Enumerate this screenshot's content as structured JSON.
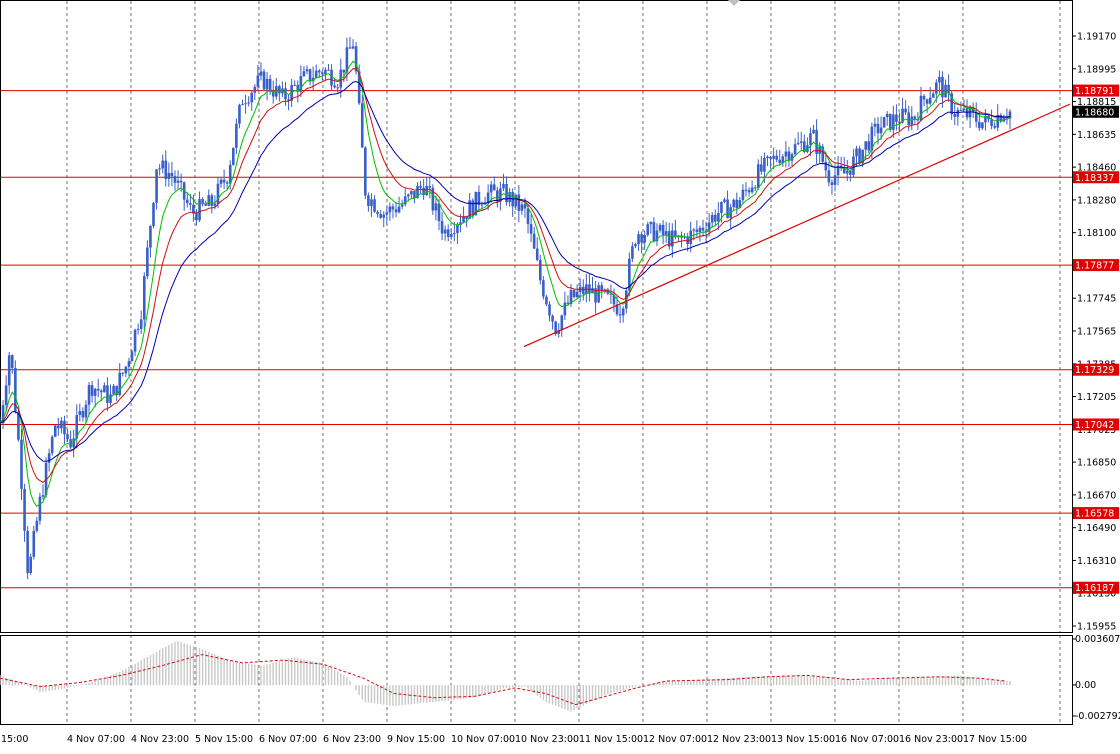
{
  "chart_data": [
    {
      "type": "candlestick",
      "symbol": "EURUSD",
      "timeframe": "H1",
      "colors": {
        "background": "#ffffff",
        "candles": "#3a5fc8",
        "grid": "#000000",
        "ma_fast": "#00c000",
        "ma_mid": "#d01010",
        "ma_slow": "#0000b0",
        "levels": "#e00000",
        "trendline": "#e00000",
        "current_price_box": "#000000"
      },
      "ylim": [
        1.15955,
        1.19255
      ],
      "y_ticks": [
        "1.19170",
        "1.18995",
        "1.18815",
        "1.18635",
        "1.18460",
        "1.18280",
        "1.18100",
        "1.17920",
        "1.17745",
        "1.17565",
        "1.17385",
        "1.17205",
        "1.17025",
        "1.16850",
        "1.16670",
        "1.16490",
        "1.16310",
        "1.16130",
        "1.15955"
      ],
      "x_ticks": [
        "15:00",
        "4 Nov 07:00",
        "4 Nov 23:00",
        "5 Nov 15:00",
        "6 Nov 07:00",
        "6 Nov 23:00",
        "9 Nov 15:00",
        "10 Nov 07:00",
        "10 Nov 23:00",
        "11 Nov 15:00",
        "12 Nov 07:00",
        "12 Nov 23:00",
        "13 Nov 15:00",
        "16 Nov 07:00",
        "16 Nov 23:00",
        "17 Nov 15:00"
      ],
      "levels": [
        {
          "label": "1.18791",
          "value": 1.18791
        },
        {
          "label": "1.18337",
          "value": 1.18337
        },
        {
          "label": "1.17877",
          "value": 1.17877
        },
        {
          "label": "1.17329",
          "value": 1.17329
        },
        {
          "label": "1.17042",
          "value": 1.17042
        },
        {
          "label": "1.16578",
          "value": 1.16578
        },
        {
          "label": "1.16187",
          "value": 1.16187
        }
      ],
      "current_price": {
        "label": "1.18680",
        "value": 1.1868
      },
      "trendline": {
        "from": {
          "x": 0.0,
          "y": 1.1745
        },
        "to": {
          "x": 1.0,
          "y": 1.1872
        }
      },
      "price_path": [
        [
          0.0,
          1.1705
        ],
        [
          0.01,
          1.1745
        ],
        [
          0.02,
          1.1685
        ],
        [
          0.028,
          1.1625
        ],
        [
          0.04,
          1.1665
        ],
        [
          0.055,
          1.1705
        ],
        [
          0.07,
          1.1695
        ],
        [
          0.09,
          1.1725
        ],
        [
          0.11,
          1.1718
        ],
        [
          0.125,
          1.1735
        ],
        [
          0.14,
          1.1765
        ],
        [
          0.155,
          1.184
        ],
        [
          0.17,
          1.1835
        ],
        [
          0.19,
          1.1815
        ],
        [
          0.21,
          1.182
        ],
        [
          0.225,
          1.1835
        ],
        [
          0.24,
          1.1875
        ],
        [
          0.26,
          1.1885
        ],
        [
          0.28,
          1.1875
        ],
        [
          0.3,
          1.1885
        ],
        [
          0.32,
          1.189
        ],
        [
          0.335,
          1.1885
        ],
        [
          0.35,
          1.1905
        ],
        [
          0.362,
          1.1825
        ],
        [
          0.38,
          1.1815
        ],
        [
          0.4,
          1.182
        ],
        [
          0.42,
          1.183
        ],
        [
          0.44,
          1.1805
        ],
        [
          0.46,
          1.1815
        ],
        [
          0.48,
          1.1825
        ],
        [
          0.5,
          1.1825
        ],
        [
          0.52,
          1.1815
        ],
        [
          0.535,
          1.178
        ],
        [
          0.55,
          1.1755
        ],
        [
          0.565,
          1.177
        ],
        [
          0.58,
          1.1775
        ],
        [
          0.6,
          1.177
        ],
        [
          0.615,
          1.1765
        ],
        [
          0.63,
          1.1805
        ],
        [
          0.65,
          1.1805
        ],
        [
          0.67,
          1.18
        ],
        [
          0.69,
          1.1805
        ],
        [
          0.71,
          1.1815
        ],
        [
          0.73,
          1.182
        ],
        [
          0.75,
          1.1835
        ],
        [
          0.77,
          1.1845
        ],
        [
          0.79,
          1.185
        ],
        [
          0.805,
          1.1855
        ],
        [
          0.82,
          1.1835
        ],
        [
          0.835,
          1.1835
        ],
        [
          0.85,
          1.1845
        ],
        [
          0.87,
          1.186
        ],
        [
          0.89,
          1.1865
        ],
        [
          0.905,
          1.1865
        ],
        [
          0.915,
          1.1875
        ],
        [
          0.93,
          1.1883
        ],
        [
          0.945,
          1.1868
        ],
        [
          0.96,
          1.1866
        ],
        [
          0.975,
          1.1862
        ],
        [
          0.985,
          1.1865
        ],
        [
          0.993,
          1.1868
        ]
      ]
    },
    {
      "type": "histogram",
      "name": "MACD",
      "ylim": [
        -0.002792,
        0.003607
      ],
      "y_ticks": [
        "0.003607",
        "0.00",
        "-0.002792"
      ],
      "hist_path": [
        [
          0.0,
          0.0007
        ],
        [
          0.02,
          0.0002
        ],
        [
          0.04,
          -0.0005
        ],
        [
          0.06,
          -0.0003
        ],
        [
          0.09,
          0.0002
        ],
        [
          0.12,
          0.001
        ],
        [
          0.15,
          0.0022
        ],
        [
          0.175,
          0.0032
        ],
        [
          0.2,
          0.0026
        ],
        [
          0.23,
          0.0017
        ],
        [
          0.26,
          0.0014
        ],
        [
          0.29,
          0.002
        ],
        [
          0.32,
          0.0016
        ],
        [
          0.345,
          0.0005
        ],
        [
          0.36,
          -0.0012
        ],
        [
          0.39,
          -0.0015
        ],
        [
          0.43,
          -0.0012
        ],
        [
          0.47,
          -0.0009
        ],
        [
          0.5,
          -0.0002
        ],
        [
          0.52,
          -0.0001
        ],
        [
          0.54,
          -0.0012
        ],
        [
          0.565,
          -0.0019
        ],
        [
          0.6,
          -0.0007
        ],
        [
          0.63,
          -0.0001
        ],
        [
          0.66,
          0.0003
        ],
        [
          0.7,
          0.0004
        ],
        [
          0.74,
          0.0006
        ],
        [
          0.78,
          0.0007
        ],
        [
          0.82,
          0.0006
        ],
        [
          0.85,
          0.0003
        ],
        [
          0.88,
          0.0005
        ],
        [
          0.92,
          0.0006
        ],
        [
          0.95,
          0.0007
        ],
        [
          0.975,
          0.0004
        ],
        [
          0.995,
          0.0003
        ]
      ],
      "signal_path": [
        [
          0.0,
          0.0005
        ],
        [
          0.04,
          -0.0001
        ],
        [
          0.08,
          0.0002
        ],
        [
          0.12,
          0.0007
        ],
        [
          0.16,
          0.0014
        ],
        [
          0.2,
          0.0022
        ],
        [
          0.24,
          0.0016
        ],
        [
          0.28,
          0.0018
        ],
        [
          0.32,
          0.0015
        ],
        [
          0.36,
          0.0005
        ],
        [
          0.39,
          -0.0006
        ],
        [
          0.43,
          -0.0009
        ],
        [
          0.47,
          -0.0008
        ],
        [
          0.51,
          -0.0002
        ],
        [
          0.54,
          -0.0006
        ],
        [
          0.57,
          -0.0014
        ],
        [
          0.6,
          -0.0008
        ],
        [
          0.63,
          -0.0002
        ],
        [
          0.66,
          0.0003
        ],
        [
          0.72,
          0.0004
        ],
        [
          0.76,
          0.0006
        ],
        [
          0.8,
          0.0007
        ],
        [
          0.84,
          0.0004
        ],
        [
          0.88,
          0.0005
        ],
        [
          0.93,
          0.0006
        ],
        [
          0.97,
          0.0005
        ],
        [
          0.995,
          0.0003
        ]
      ]
    }
  ]
}
